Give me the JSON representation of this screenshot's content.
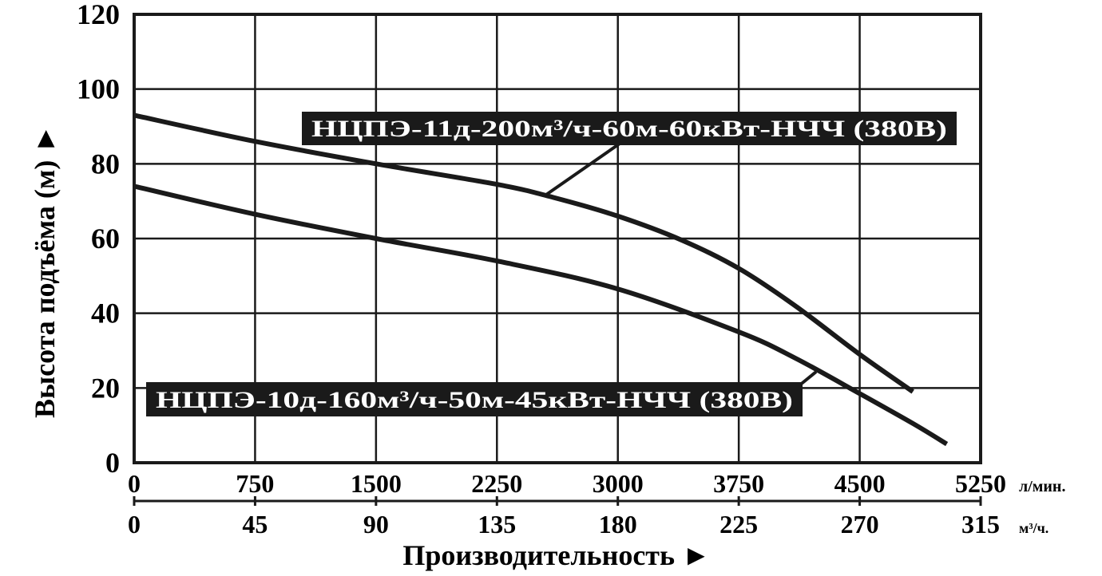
{
  "chart_data": {
    "type": "line",
    "title": "",
    "xlabel": "Производительность ►",
    "ylabel": "Высота подъёма (м) ►",
    "xlim": [
      0,
      5250
    ],
    "ylim": [
      0,
      120
    ],
    "grid": true,
    "x_ticks_lpm": [
      "0",
      "750",
      "1500",
      "2250",
      "3000",
      "3750",
      "4500",
      "5250"
    ],
    "x_unit_lpm": "л/мин.",
    "x_ticks_m3h": [
      "0",
      "45",
      "90",
      "135",
      "180",
      "225",
      "270",
      "315"
    ],
    "x_unit_m3h": "м³/ч.",
    "y_ticks": [
      "0",
      "20",
      "40",
      "60",
      "80",
      "100",
      "120"
    ],
    "series": [
      {
        "name": "НЦПЭ-11д-200м³/ч-60м-60кВт-НЧЧ (380В)",
        "x": [
          0,
          750,
          1500,
          2250,
          2600,
          3000,
          3400,
          3750,
          4100,
          4500,
          4830
        ],
        "y": [
          93,
          86,
          80,
          74.5,
          71,
          66,
          59.5,
          52,
          42,
          29,
          19
        ],
        "color": "#1a1a1a"
      },
      {
        "name": "НЦПЭ-10д-160м³/ч-50м-45кВт-НЧЧ (380В)",
        "x": [
          0,
          750,
          1500,
          2250,
          3000,
          3750,
          4100,
          4500,
          4830,
          5040
        ],
        "y": [
          74,
          66.5,
          60,
          54,
          46.5,
          35,
          28,
          18.5,
          10.5,
          5
        ],
        "color": "#1a1a1a"
      }
    ]
  }
}
